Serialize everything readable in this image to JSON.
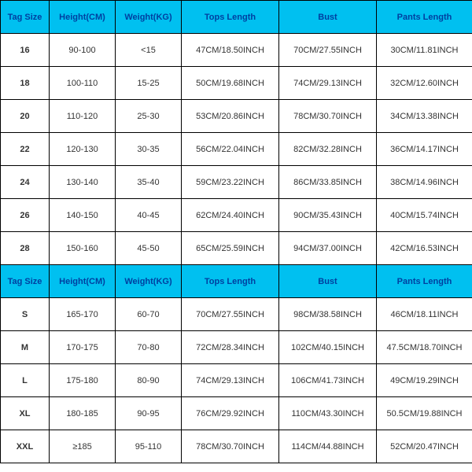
{
  "header_bg": "#00c0f0",
  "header_color": "#0040a0",
  "cell_color": "#333333",
  "columns": [
    "Tag Size",
    "Height(CM)",
    "Weight(KG)",
    "Tops Length",
    "Bust",
    "Pants Length"
  ],
  "section1": [
    [
      "16",
      "90-100",
      "<15",
      "47CM/18.50INCH",
      "70CM/27.55INCH",
      "30CM/11.81INCH"
    ],
    [
      "18",
      "100-110",
      "15-25",
      "50CM/19.68INCH",
      "74CM/29.13INCH",
      "32CM/12.60INCH"
    ],
    [
      "20",
      "110-120",
      "25-30",
      "53CM/20.86INCH",
      "78CM/30.70INCH",
      "34CM/13.38INCH"
    ],
    [
      "22",
      "120-130",
      "30-35",
      "56CM/22.04INCH",
      "82CM/32.28INCH",
      "36CM/14.17INCH"
    ],
    [
      "24",
      "130-140",
      "35-40",
      "59CM/23.22INCH",
      "86CM/33.85INCH",
      "38CM/14.96INCH"
    ],
    [
      "26",
      "140-150",
      "40-45",
      "62CM/24.40INCH",
      "90CM/35.43INCH",
      "40CM/15.74INCH"
    ],
    [
      "28",
      "150-160",
      "45-50",
      "65CM/25.59INCH",
      "94CM/37.00INCH",
      "42CM/16.53INCH"
    ]
  ],
  "section2": [
    [
      "S",
      "165-170",
      "60-70",
      "70CM/27.55INCH",
      "98CM/38.58INCH",
      "46CM/18.11INCH"
    ],
    [
      "M",
      "170-175",
      "70-80",
      "72CM/28.34INCH",
      "102CM/40.15INCH",
      "47.5CM/18.70INCH"
    ],
    [
      "L",
      "175-180",
      "80-90",
      "74CM/29.13INCH",
      "106CM/41.73INCH",
      "49CM/19.29INCH"
    ],
    [
      "XL",
      "180-185",
      "90-95",
      "76CM/29.92INCH",
      "110CM/43.30INCH",
      "50.5CM/19.88INCH"
    ],
    [
      "XXL",
      "≥185",
      "95-110",
      "78CM/30.70INCH",
      "114CM/44.88INCH",
      "52CM/20.47INCH"
    ]
  ]
}
